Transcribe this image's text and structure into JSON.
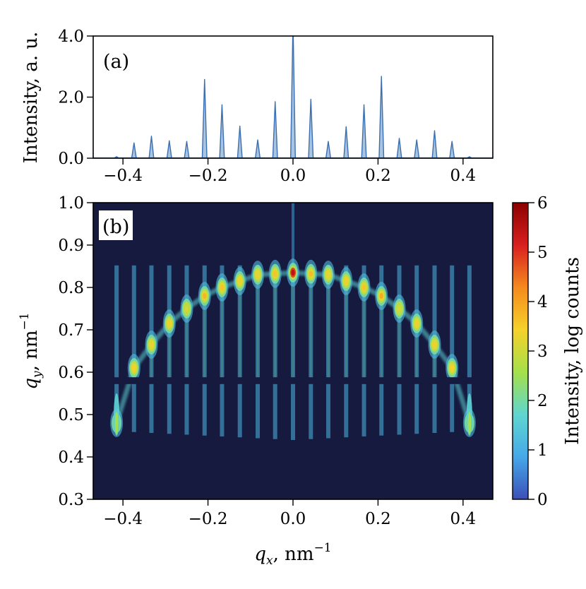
{
  "chart_data": [
    {
      "panel": "(a)",
      "type": "line",
      "title": "",
      "xlabel": "",
      "ylabel": "Intensity, a. u.",
      "xlim": [
        -0.47,
        0.47
      ],
      "ylim": [
        0.0,
        4.0
      ],
      "xticks": [
        -0.4,
        -0.2,
        0.0,
        0.2,
        0.4
      ],
      "xtick_labels": [
        "−0.4",
        "−0.2",
        "0.0",
        "0.2",
        "0.4"
      ],
      "yticks": [
        0.0,
        2.0,
        4.0
      ],
      "ytick_labels": [
        "0.0",
        "2.0",
        "4.0"
      ],
      "fill_color": "#a9c4e0",
      "line_color": "#3b6fb0",
      "peaks": {
        "x": [
          -0.415,
          -0.374,
          -0.333,
          -0.291,
          -0.25,
          -0.208,
          -0.167,
          -0.125,
          -0.083,
          -0.042,
          0.0,
          0.042,
          0.083,
          0.125,
          0.167,
          0.208,
          0.25,
          0.291,
          0.333,
          0.374,
          0.415
        ],
        "y": [
          0.05,
          0.5,
          0.72,
          0.57,
          0.55,
          2.58,
          1.75,
          1.05,
          0.6,
          1.85,
          4.5,
          1.93,
          0.55,
          1.03,
          1.75,
          2.68,
          0.65,
          0.6,
          0.9,
          0.55,
          0.05
        ]
      }
    },
    {
      "panel": "(b)",
      "type": "heatmap",
      "title": "",
      "xlabel_main": "q",
      "xlabel_sub": "x",
      "xlabel_unit": ", nm",
      "xlabel_exp": "−1",
      "ylabel_main": "q",
      "ylabel_sub": "y",
      "ylabel_unit": ", nm",
      "ylabel_exp": "−1",
      "xlim": [
        -0.47,
        0.47
      ],
      "ylim": [
        0.3,
        1.0
      ],
      "xticks": [
        -0.4,
        -0.2,
        0.0,
        0.2,
        0.4
      ],
      "xtick_labels": [
        "−0.4",
        "−0.2",
        "0.0",
        "0.2",
        "0.4"
      ],
      "yticks": [
        0.3,
        0.4,
        0.5,
        0.6,
        0.7,
        0.8,
        0.9,
        1.0
      ],
      "ytick_labels": [
        "0.3",
        "0.4",
        "0.5",
        "0.6",
        "0.7",
        "0.8",
        "0.9",
        "1.0"
      ],
      "background_color": "#151a3e",
      "colormap": [
        "#3b4fb8",
        "#46a8e8",
        "#5fd6d0",
        "#a5e04a",
        "#f5d22a",
        "#f58a1e",
        "#d81f1f",
        "#8b0000"
      ],
      "colorbar": {
        "label": "Intensity, log counts",
        "range": [
          0,
          6
        ],
        "ticks": [
          0,
          1,
          2,
          3,
          4,
          5,
          6
        ],
        "tick_labels": [
          "0",
          "1",
          "2",
          "3",
          "4",
          "5",
          "6"
        ]
      },
      "detector_gap_qy": [
        0.572,
        0.588
      ],
      "spots": {
        "qx": [
          -0.415,
          -0.374,
          -0.333,
          -0.291,
          -0.25,
          -0.208,
          -0.167,
          -0.125,
          -0.083,
          -0.042,
          0.0,
          0.042,
          0.083,
          0.125,
          0.167,
          0.208,
          0.25,
          0.291,
          0.333,
          0.374,
          0.415
        ],
        "qy": [
          0.48,
          0.61,
          0.665,
          0.715,
          0.75,
          0.78,
          0.8,
          0.815,
          0.83,
          0.832,
          0.835,
          0.832,
          0.83,
          0.815,
          0.8,
          0.78,
          0.75,
          0.715,
          0.665,
          0.61,
          0.48
        ],
        "log_counts": [
          2.5,
          3.4,
          3.3,
          3.3,
          3.1,
          3.8,
          3.6,
          3.3,
          3.2,
          3.6,
          5.5,
          3.7,
          3.2,
          3.3,
          3.6,
          3.9,
          3.1,
          3.3,
          3.3,
          3.4,
          2.5
        ]
      }
    }
  ]
}
